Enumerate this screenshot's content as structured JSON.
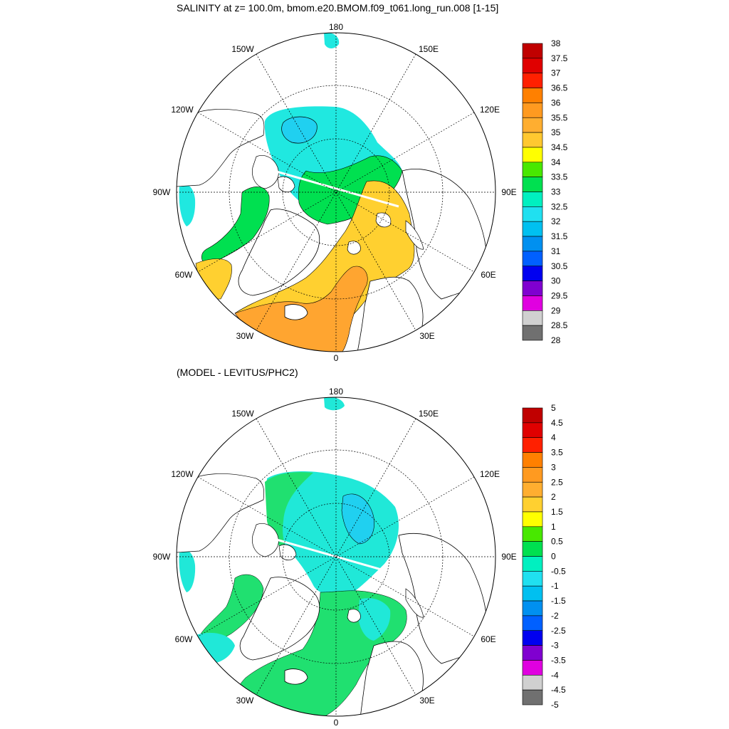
{
  "panels": [
    {
      "title": "SALINITY at z= 100.0m, bmom.e20.BMOM.f09_t061.long_run.008 [1-15]",
      "lon_labels": [
        "180",
        "150E",
        "120E",
        "90E",
        "60E",
        "30E",
        "0",
        "30W",
        "60W",
        "90W",
        "120W",
        "150W"
      ],
      "colorbar": {
        "labels": [
          "38",
          "37.5",
          "37",
          "36.5",
          "36",
          "35.5",
          "35",
          "34.5",
          "34",
          "33.5",
          "33",
          "32.5",
          "32",
          "31.5",
          "31",
          "30.5",
          "30",
          "29.5",
          "29",
          "28.5",
          "28"
        ],
        "colors": [
          "#c00000",
          "#e00000",
          "#ff2000",
          "#ff8000",
          "#ff9a20",
          "#ffae30",
          "#ffc830",
          "#ffff00",
          "#48e800",
          "#00e050",
          "#00f0c0",
          "#20e0f0",
          "#00c0f0",
          "#0090f0",
          "#0060ff",
          "#0000f0",
          "#8000d0",
          "#e000e0",
          "#d0d0d0",
          "#707070"
        ]
      }
    },
    {
      "title": "(MODEL - LEVITUS/PHC2)",
      "lon_labels": [
        "180",
        "150E",
        "120E",
        "90E",
        "60E",
        "30E",
        "0",
        "30W",
        "60W",
        "90W",
        "120W",
        "150W"
      ],
      "colorbar": {
        "labels": [
          "5",
          "4.5",
          "4",
          "3.5",
          "3",
          "2.5",
          "2",
          "1.5",
          "1",
          "0.5",
          "0",
          "-0.5",
          "-1",
          "-1.5",
          "-2",
          "-2.5",
          "-3",
          "-3.5",
          "-4",
          "-4.5",
          "-5"
        ],
        "colors": [
          "#c00000",
          "#e00000",
          "#ff2000",
          "#ff8000",
          "#ff9a20",
          "#ffae30",
          "#ffd030",
          "#ffff00",
          "#48e800",
          "#00e050",
          "#00f0c0",
          "#20e0f0",
          "#00c0f0",
          "#0090f0",
          "#0060ff",
          "#0000f0",
          "#8000d0",
          "#e000e0",
          "#d0d0d0",
          "#707070"
        ]
      }
    }
  ],
  "palette": {
    "water_bg": "#ffffff",
    "coast": "#000000",
    "grid": "#000000"
  }
}
